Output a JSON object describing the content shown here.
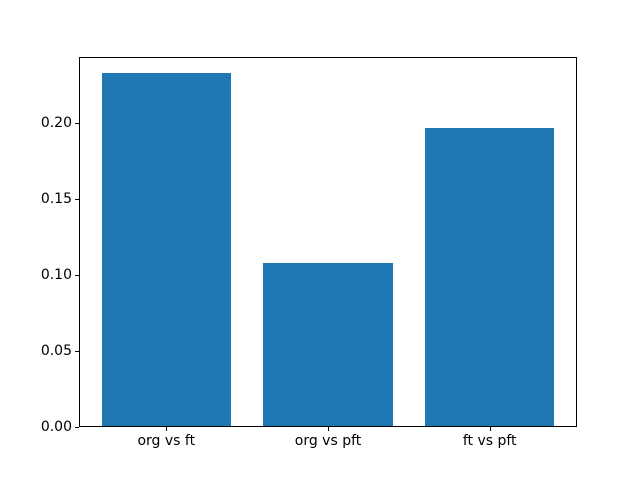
{
  "figure": {
    "background_color": "#ffffff",
    "spine_color": "#000000",
    "title": ""
  },
  "chart_data": {
    "type": "bar",
    "categories": [
      "org vs ft",
      "org vs pft",
      "ft vs pft"
    ],
    "values": [
      0.232,
      0.107,
      0.196
    ],
    "title": "",
    "xlabel": "",
    "ylabel": "",
    "xlim": [
      -0.54,
      2.54
    ],
    "ylim": [
      0,
      0.2433
    ],
    "yticks": [
      0.0,
      0.05,
      0.1,
      0.15,
      0.2
    ],
    "ytick_labels": [
      "0.00",
      "0.05",
      "0.10",
      "0.15",
      "0.20"
    ],
    "bar_color": "#1f77b4",
    "bar_width": 0.8,
    "grid": false,
    "legend_position": "none"
  }
}
